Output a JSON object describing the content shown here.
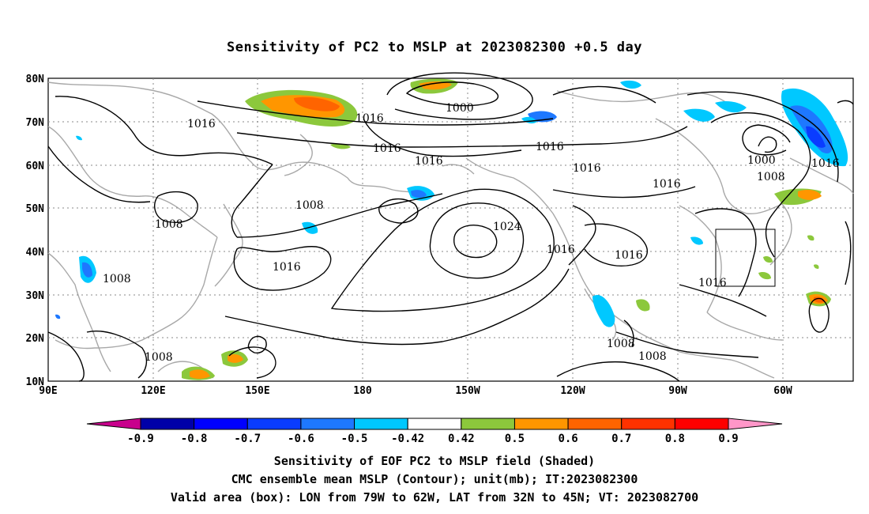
{
  "title": "Sensitivity of PC2 to MSLP at 2023082300 +0.5 day",
  "lat_labels": [
    "80N",
    "70N",
    "60N",
    "50N",
    "40N",
    "30N",
    "20N",
    "10N"
  ],
  "lon_labels": [
    "90E",
    "120E",
    "150E",
    "180",
    "150W",
    "120W",
    "90W",
    "60W"
  ],
  "isobar_labels": [
    {
      "text": "1000"
    },
    {
      "text": "1016"
    },
    {
      "text": "1016"
    },
    {
      "text": "1016"
    },
    {
      "text": "1016"
    },
    {
      "text": "1016"
    },
    {
      "text": "1016"
    },
    {
      "text": "1016"
    },
    {
      "text": "1000"
    },
    {
      "text": "1008"
    },
    {
      "text": "1016"
    },
    {
      "text": "1008"
    },
    {
      "text": "1008"
    },
    {
      "text": "1024"
    },
    {
      "text": "1016"
    },
    {
      "text": "1016"
    },
    {
      "text": "1016"
    },
    {
      "text": "1008"
    },
    {
      "text": "1008"
    },
    {
      "text": "1008"
    },
    {
      "text": "1008"
    },
    {
      "text": "1016"
    }
  ],
  "colorbar": {
    "labels": [
      "-0.9",
      "-0.8",
      "-0.7",
      "-0.6",
      "-0.5",
      "-0.42",
      "0.42",
      "0.5",
      "0.6",
      "0.7",
      "0.8",
      "0.9"
    ],
    "colors": [
      "#0000a8",
      "#0000ff",
      "#0a3cff",
      "#1e78ff",
      "#00c8ff",
      "#ffffff",
      "#8cc83c",
      "#ff9600",
      "#ff6400",
      "#ff3200",
      "#ff0000"
    ],
    "low_end_color": "#c8008c",
    "high_end_color": "#ff96c8"
  },
  "captions": {
    "line1": "Sensitivity of EOF PC2 to MSLP field (Shaded)",
    "line2": "CMC ensemble mean MSLP (Contour); unit(mb); IT:2023082300",
    "line3": "Valid area (box): LON from 79W to 62W, LAT from 32N to 45N; VT: 2023082700"
  }
}
